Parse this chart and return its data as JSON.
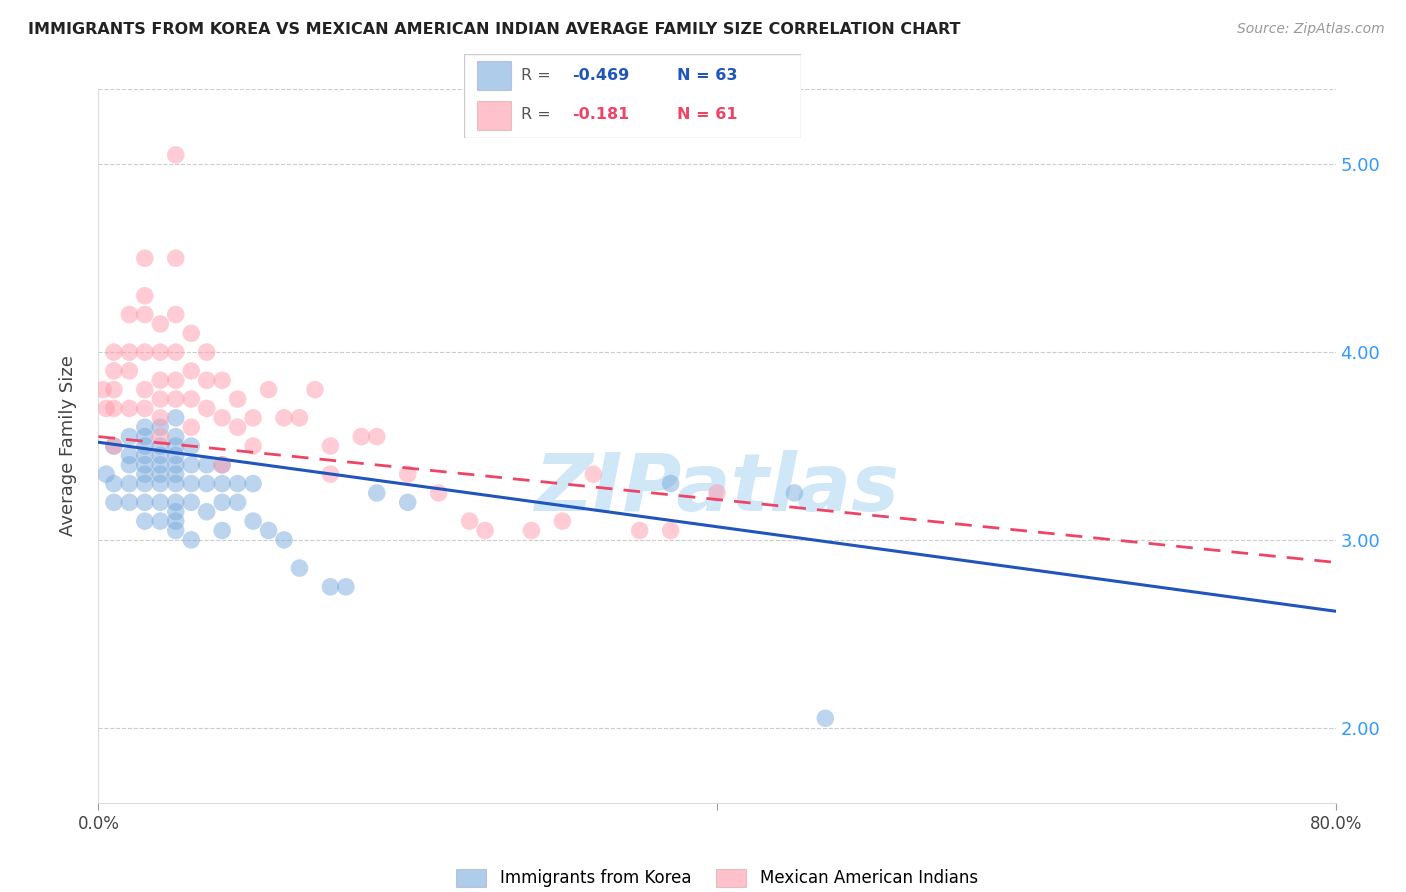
{
  "title": "IMMIGRANTS FROM KOREA VS MEXICAN AMERICAN INDIAN AVERAGE FAMILY SIZE CORRELATION CHART",
  "source": "Source: ZipAtlas.com",
  "ylabel": "Average Family Size",
  "yticks": [
    2.0,
    3.0,
    4.0,
    5.0
  ],
  "ylim": [
    1.6,
    5.4
  ],
  "xlim": [
    0.0,
    80.0
  ],
  "blue_color": "#7aaadd",
  "pink_color": "#ff99aa",
  "trend_blue_color": "#2255bb",
  "trend_pink_color": "#ee4466",
  "right_tick_color": "#3399ff",
  "watermark": "ZIPatlas",
  "watermark_color": "#bbddf5",
  "legend_blue_r": "R = -0.469",
  "legend_blue_n": "N = 63",
  "legend_pink_r": "R =  -0.181",
  "legend_pink_n": "N = 61",
  "blue_scatter_x": [
    0.5,
    1,
    1,
    1,
    2,
    2,
    2,
    2,
    2,
    3,
    3,
    3,
    3,
    3,
    3,
    3,
    3,
    3,
    4,
    4,
    4,
    4,
    4,
    4,
    4,
    4,
    5,
    5,
    5,
    5,
    5,
    5,
    5,
    5,
    5,
    5,
    5,
    6,
    6,
    6,
    6,
    6,
    7,
    7,
    7,
    8,
    8,
    8,
    8,
    9,
    9,
    10,
    10,
    11,
    12,
    13,
    15,
    16,
    18,
    20,
    37,
    45,
    47
  ],
  "blue_scatter_y": [
    3.35,
    3.5,
    3.3,
    3.2,
    3.55,
    3.45,
    3.4,
    3.3,
    3.2,
    3.6,
    3.55,
    3.5,
    3.45,
    3.4,
    3.35,
    3.3,
    3.2,
    3.1,
    3.6,
    3.5,
    3.45,
    3.4,
    3.35,
    3.3,
    3.2,
    3.1,
    3.65,
    3.55,
    3.5,
    3.45,
    3.4,
    3.35,
    3.3,
    3.2,
    3.15,
    3.1,
    3.05,
    3.5,
    3.4,
    3.3,
    3.2,
    3.0,
    3.4,
    3.3,
    3.15,
    3.4,
    3.3,
    3.2,
    3.05,
    3.3,
    3.2,
    3.3,
    3.1,
    3.05,
    3.0,
    2.85,
    2.75,
    2.75,
    3.25,
    3.2,
    3.3,
    3.25,
    2.05
  ],
  "pink_scatter_x": [
    0.3,
    0.5,
    1,
    1,
    1,
    1,
    1,
    2,
    2,
    2,
    2,
    3,
    3,
    3,
    3,
    3,
    3,
    4,
    4,
    4,
    4,
    4,
    4,
    5,
    5,
    5,
    5,
    5,
    6,
    6,
    6,
    6,
    7,
    7,
    7,
    8,
    8,
    8,
    9,
    9,
    10,
    10,
    11,
    12,
    13,
    14,
    15,
    15,
    17,
    18,
    20,
    22,
    24,
    25,
    28,
    30,
    32,
    35,
    37,
    40,
    5.0
  ],
  "pink_scatter_y": [
    3.8,
    3.7,
    4.0,
    3.9,
    3.8,
    3.7,
    3.5,
    4.2,
    4.0,
    3.9,
    3.7,
    4.5,
    4.3,
    4.2,
    4.0,
    3.8,
    3.7,
    4.15,
    4.0,
    3.85,
    3.75,
    3.65,
    3.55,
    4.5,
    4.2,
    4.0,
    3.85,
    3.75,
    4.1,
    3.9,
    3.75,
    3.6,
    4.0,
    3.85,
    3.7,
    3.85,
    3.65,
    3.4,
    3.75,
    3.6,
    3.65,
    3.5,
    3.8,
    3.65,
    3.65,
    3.8,
    3.5,
    3.35,
    3.55,
    3.55,
    3.35,
    3.25,
    3.1,
    3.05,
    3.05,
    3.1,
    3.35,
    3.05,
    3.05,
    3.25,
    5.05
  ],
  "blue_trend_x0": 0.0,
  "blue_trend_y0": 3.52,
  "blue_trend_x1": 80.0,
  "blue_trend_y1": 2.62,
  "pink_trend_x0": 0.0,
  "pink_trend_y0": 3.55,
  "pink_trend_x1": 80.0,
  "pink_trend_y1": 2.88
}
